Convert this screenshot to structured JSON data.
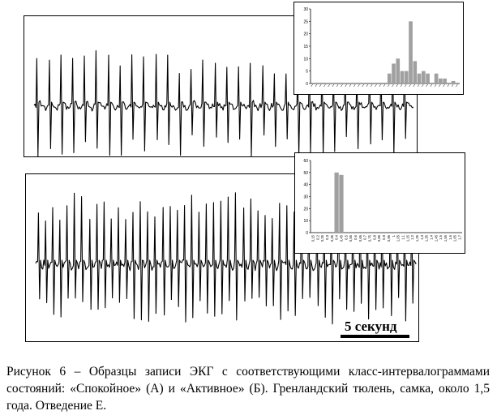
{
  "figure": {
    "scale_label": "5 секунд",
    "caption": "Рисунок 6 – Образцы записи ЭКГ с соответствующими класс-интервалограммами состояний: «Спокойное» (А) и «Активное» (Б). Гренландский тюлень, самка, около 1,5 года. Отведение Е."
  },
  "colors": {
    "trace": "#000000",
    "bar": "#a0a0a0",
    "background": "#ffffff"
  },
  "ecg_a": {
    "beats": 32,
    "trace_color": "#000000"
  },
  "ecg_b": {
    "beats": 52,
    "trace_color": "#000000"
  },
  "chart_data": [
    {
      "type": "bar",
      "y_ticks": [
        "0",
        "5",
        "10",
        "15",
        "20",
        "25",
        "30"
      ],
      "ylim": [
        0,
        30
      ],
      "values": [
        0,
        0,
        0,
        0,
        0,
        0,
        0,
        0,
        0,
        0,
        0,
        0,
        0,
        0,
        0,
        0,
        0,
        0,
        4,
        8,
        10,
        5,
        5,
        25,
        9,
        4,
        5,
        4,
        0,
        4,
        2,
        2,
        0,
        1,
        0
      ],
      "xlabel": "",
      "ylabel": ""
    },
    {
      "type": "bar",
      "y_ticks": [
        "0",
        "10",
        "20",
        "30",
        "40",
        "50",
        "60"
      ],
      "x_ticks": [
        "0,15",
        "0,2",
        "0,25",
        "0,3",
        "0,35",
        "0,4",
        "0,45",
        "0,5",
        "0,55",
        "0,6",
        "0,65",
        "0,7",
        "0,75",
        "0,8",
        "0,85",
        "0,9",
        "0,95",
        "1",
        "1,05",
        "1,1",
        "1,15",
        "1,2",
        "1,25",
        "1,3",
        "1,35",
        "1,4",
        "1,45",
        "1,5",
        "1,55",
        "1,6",
        "1,65",
        "1,7"
      ],
      "ylim": [
        0,
        60
      ],
      "values": [
        0,
        0,
        0,
        0,
        0,
        50,
        48,
        0,
        0,
        0,
        0,
        0,
        0,
        0,
        0,
        0,
        0,
        0,
        0,
        0,
        0,
        0,
        0,
        0,
        0,
        0,
        0,
        0,
        0,
        0,
        0,
        0
      ],
      "xlabel": "",
      "ylabel": ""
    }
  ]
}
